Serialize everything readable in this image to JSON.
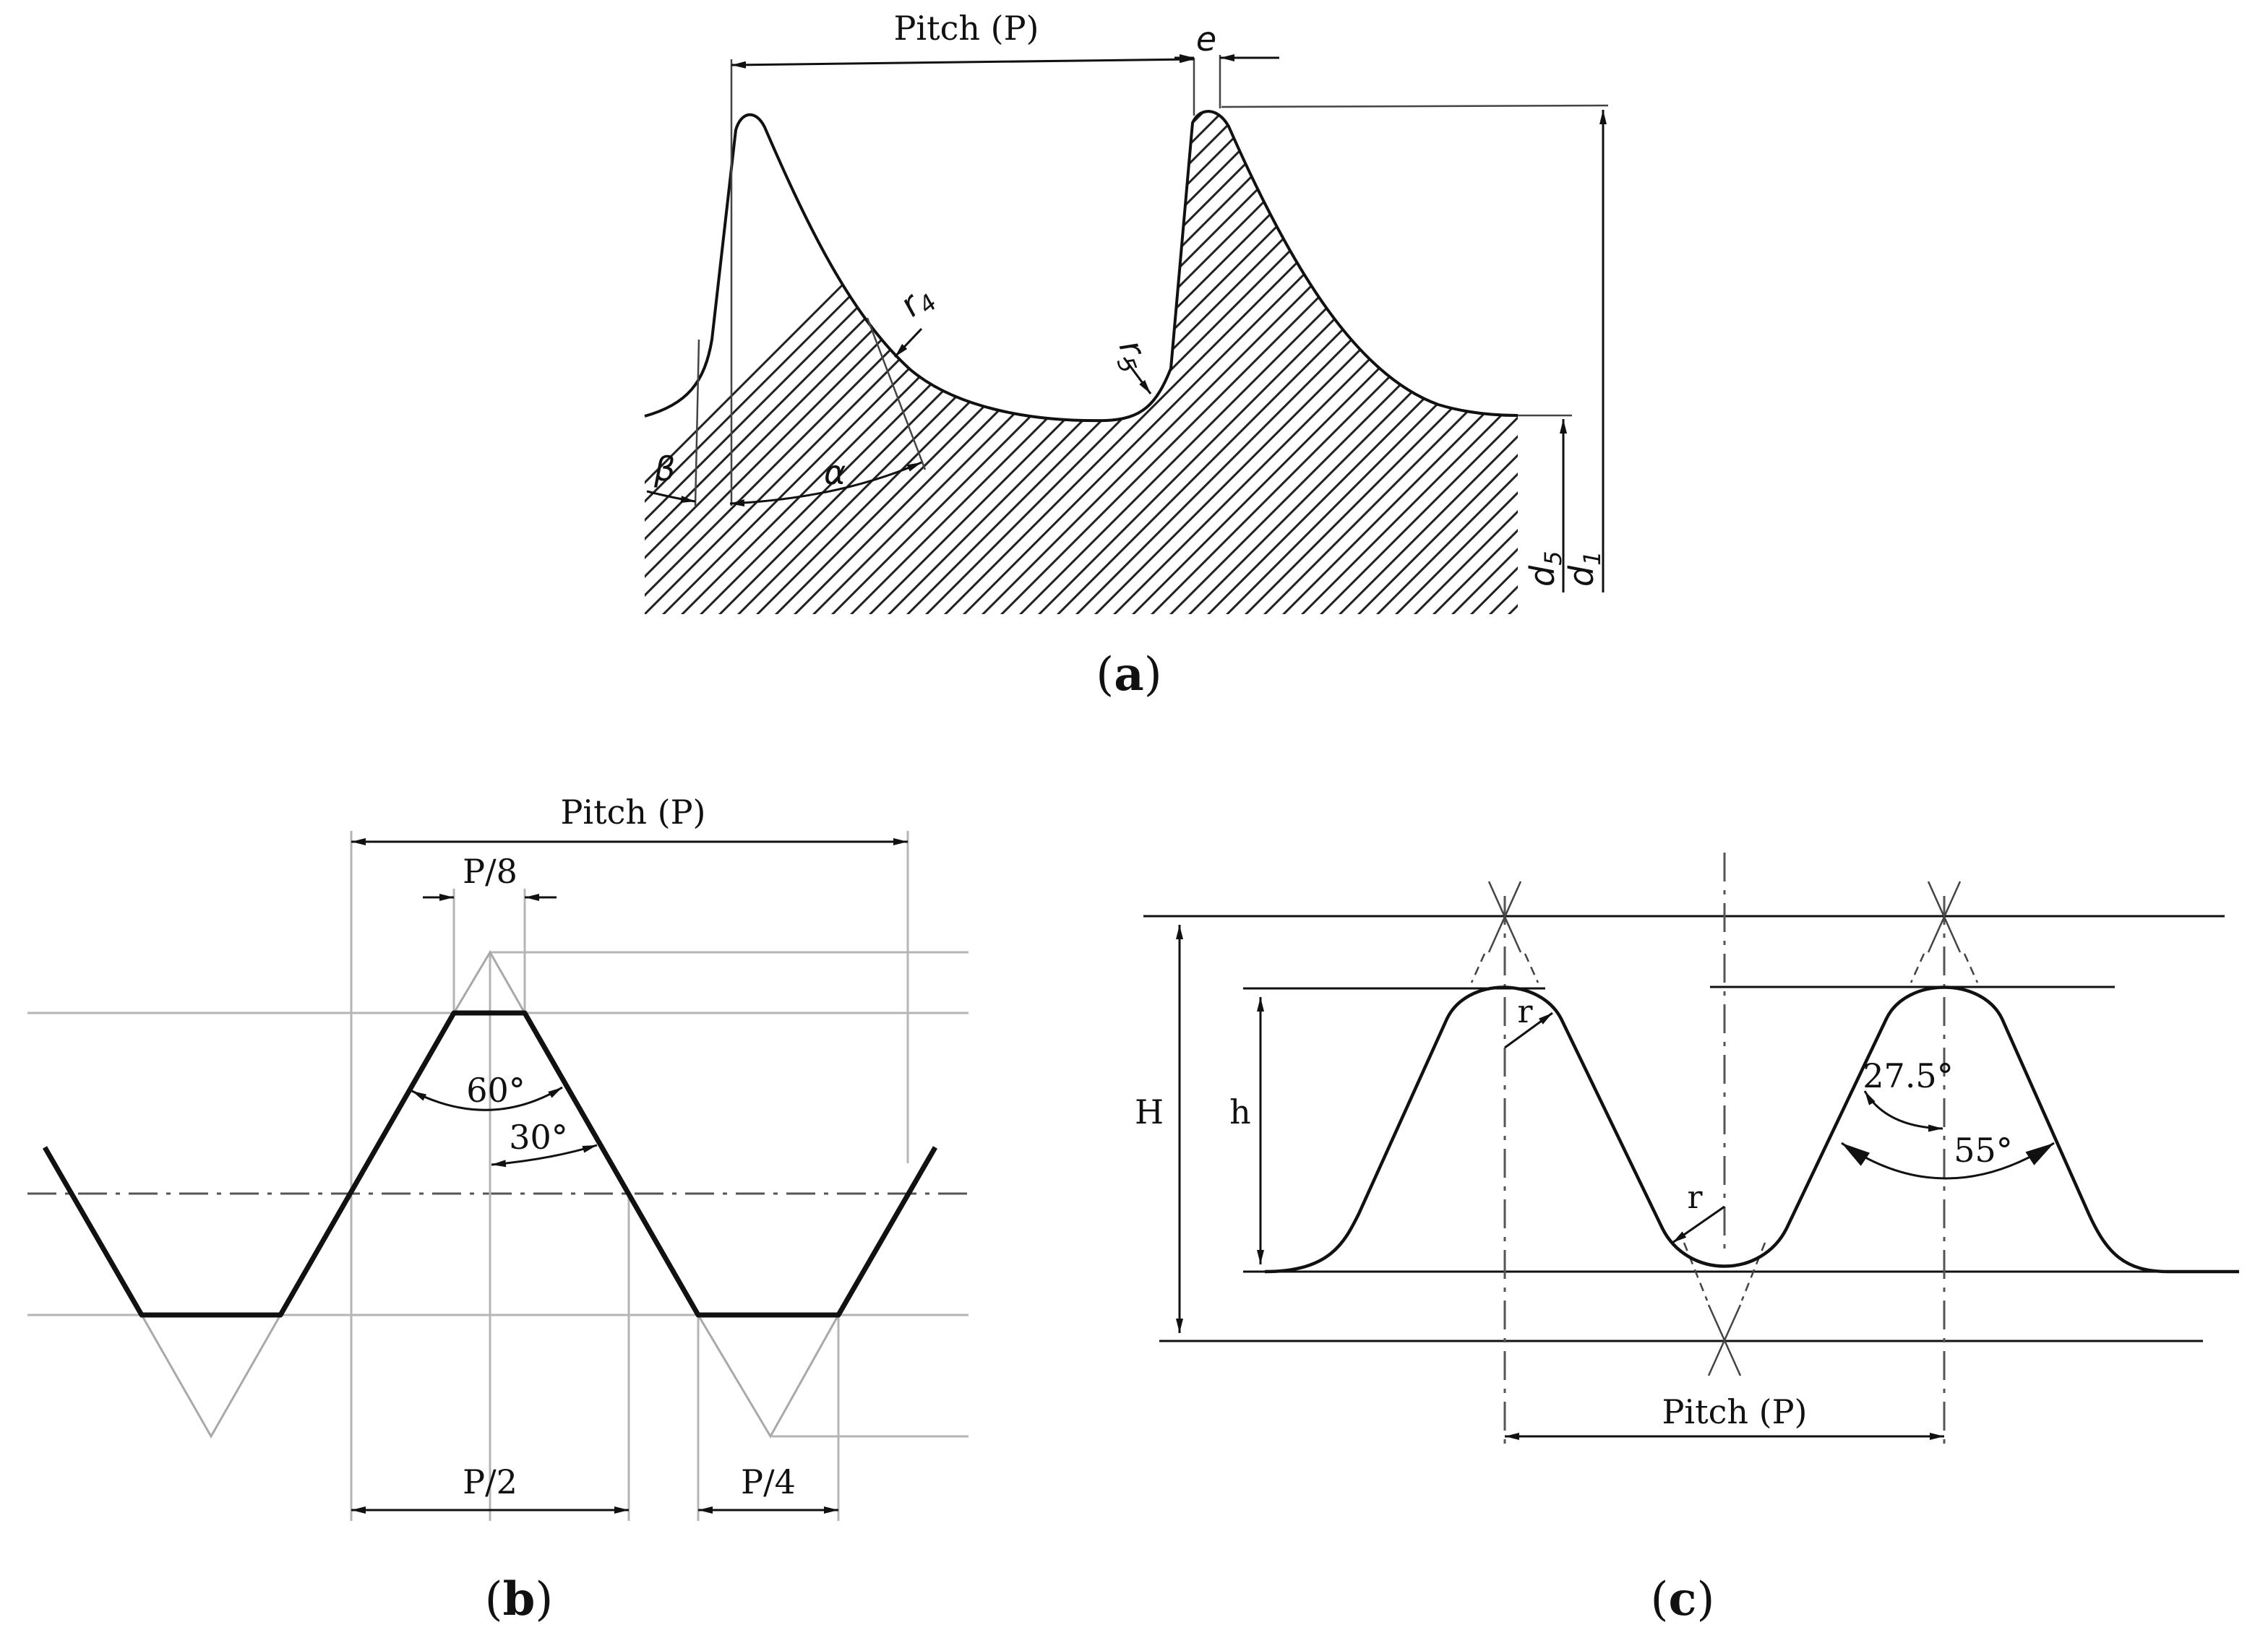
{
  "figure_a": {
    "caption": "a",
    "pitch_label": "Pitch (P)",
    "e_label": "e",
    "r4_label": "r4",
    "r5_label": "r5",
    "beta_label": "β",
    "alpha_label": "α",
    "d5_label": "d5",
    "d1_label": "d1"
  },
  "figure_b": {
    "caption": "b",
    "pitch_label": "Pitch (P)",
    "p8_label": "P/8",
    "angle60_label": "60°",
    "angle30_label": "30°",
    "p2_label": "P/2",
    "p4_label": "P/4"
  },
  "figure_c": {
    "caption": "c",
    "H_label": "H",
    "h_label": "h",
    "r_top_label": "r",
    "r_bottom_label": "r",
    "angle275_label": "27.5°",
    "angle55_label": "55°",
    "pitch_label": "Pitch (P)"
  }
}
